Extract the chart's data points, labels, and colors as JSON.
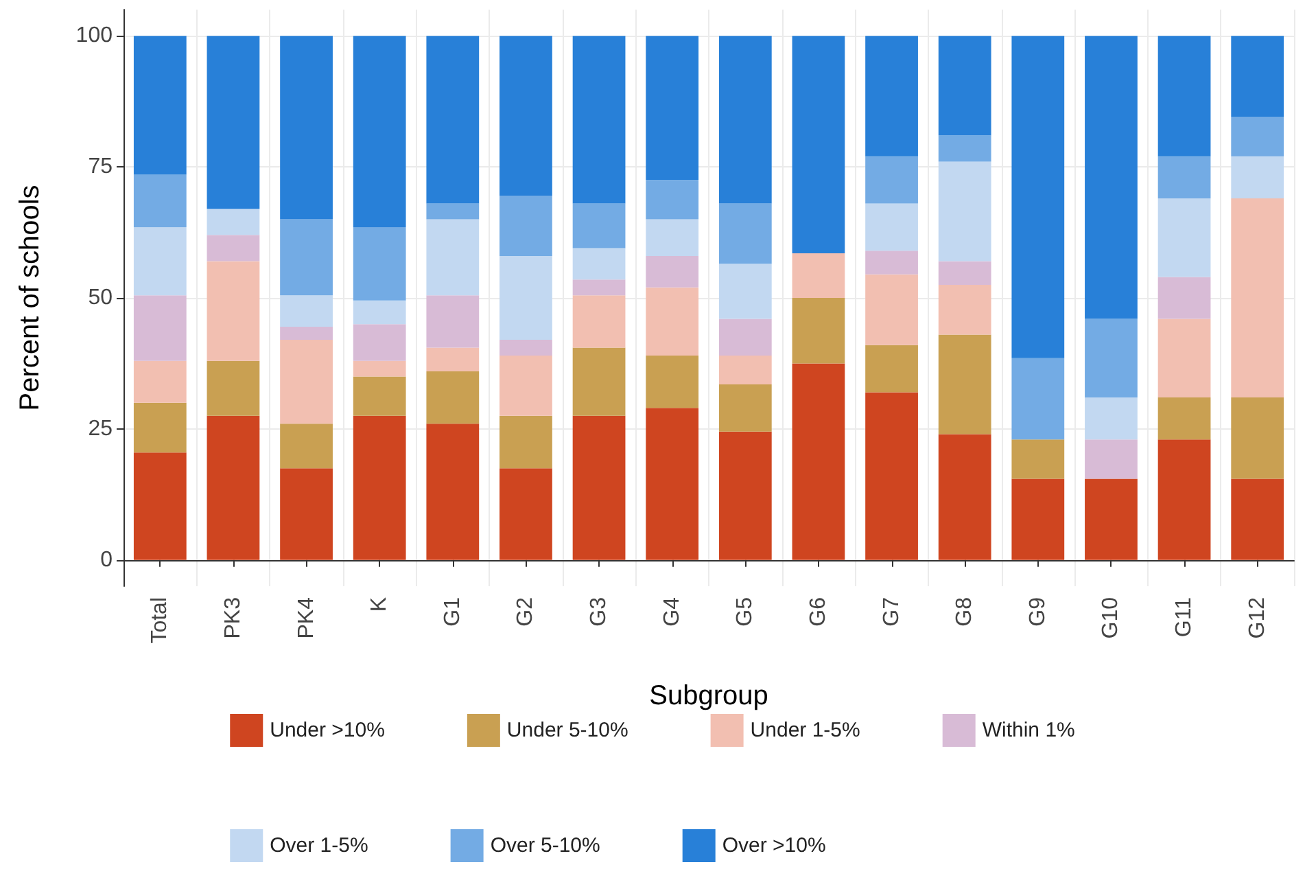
{
  "chart_data": {
    "type": "bar",
    "stacked": true,
    "xlabel": "Subgroup",
    "ylabel": "Percent of schools",
    "categories": [
      "Total",
      "PK3",
      "PK4",
      "K",
      "G1",
      "G2",
      "G3",
      "G4",
      "G5",
      "G6",
      "G7",
      "G8",
      "G9",
      "G10",
      "G11",
      "G12"
    ],
    "series": [
      {
        "name": "Under >10%",
        "color": "#cf4520",
        "values": [
          20.5,
          27.5,
          17.5,
          27.5,
          26,
          17.5,
          27.5,
          29,
          24.5,
          37.5,
          32,
          24,
          15.5,
          15.5,
          23,
          15.5
        ]
      },
      {
        "name": "Under 5-10%",
        "color": "#c9a052",
        "values": [
          9.5,
          10.5,
          8.5,
          7.5,
          10,
          10,
          13,
          10,
          9,
          12.5,
          9,
          19,
          7.5,
          0,
          8,
          15.5
        ]
      },
      {
        "name": "Under 1-5%",
        "color": "#f2bfb1",
        "values": [
          8,
          19,
          16,
          3,
          4.5,
          11.5,
          10,
          13,
          5.5,
          8.5,
          13.5,
          9.5,
          0,
          0,
          15,
          38
        ]
      },
      {
        "name": "Within 1%",
        "color": "#d8bbd6",
        "values": [
          12.5,
          5,
          2.5,
          7,
          10,
          3,
          3,
          6,
          7,
          0,
          4.5,
          4.5,
          0,
          7.5,
          8,
          0
        ]
      },
      {
        "name": "Over 1-5%",
        "color": "#c2d8f1",
        "values": [
          13,
          5,
          6,
          4.5,
          14.5,
          16,
          6,
          7,
          10.5,
          0,
          9,
          19,
          0,
          8,
          15,
          8
        ]
      },
      {
        "name": "Over 5-10%",
        "color": "#73abe4",
        "values": [
          10,
          0,
          14.5,
          14,
          3,
          11.5,
          8.5,
          7.5,
          11.5,
          0,
          9,
          5,
          15.5,
          15,
          8,
          7.5
        ]
      },
      {
        "name": "Over >10%",
        "color": "#2880d8",
        "values": [
          26.5,
          33,
          35,
          36.5,
          32,
          30.5,
          32,
          27.5,
          32,
          41.5,
          23,
          19,
          61.5,
          54,
          23,
          15.5
        ]
      }
    ],
    "ylim": [
      -5,
      105
    ],
    "yticks": [
      0,
      25,
      50,
      75,
      100
    ],
    "grid": true,
    "legend": "bottom"
  }
}
